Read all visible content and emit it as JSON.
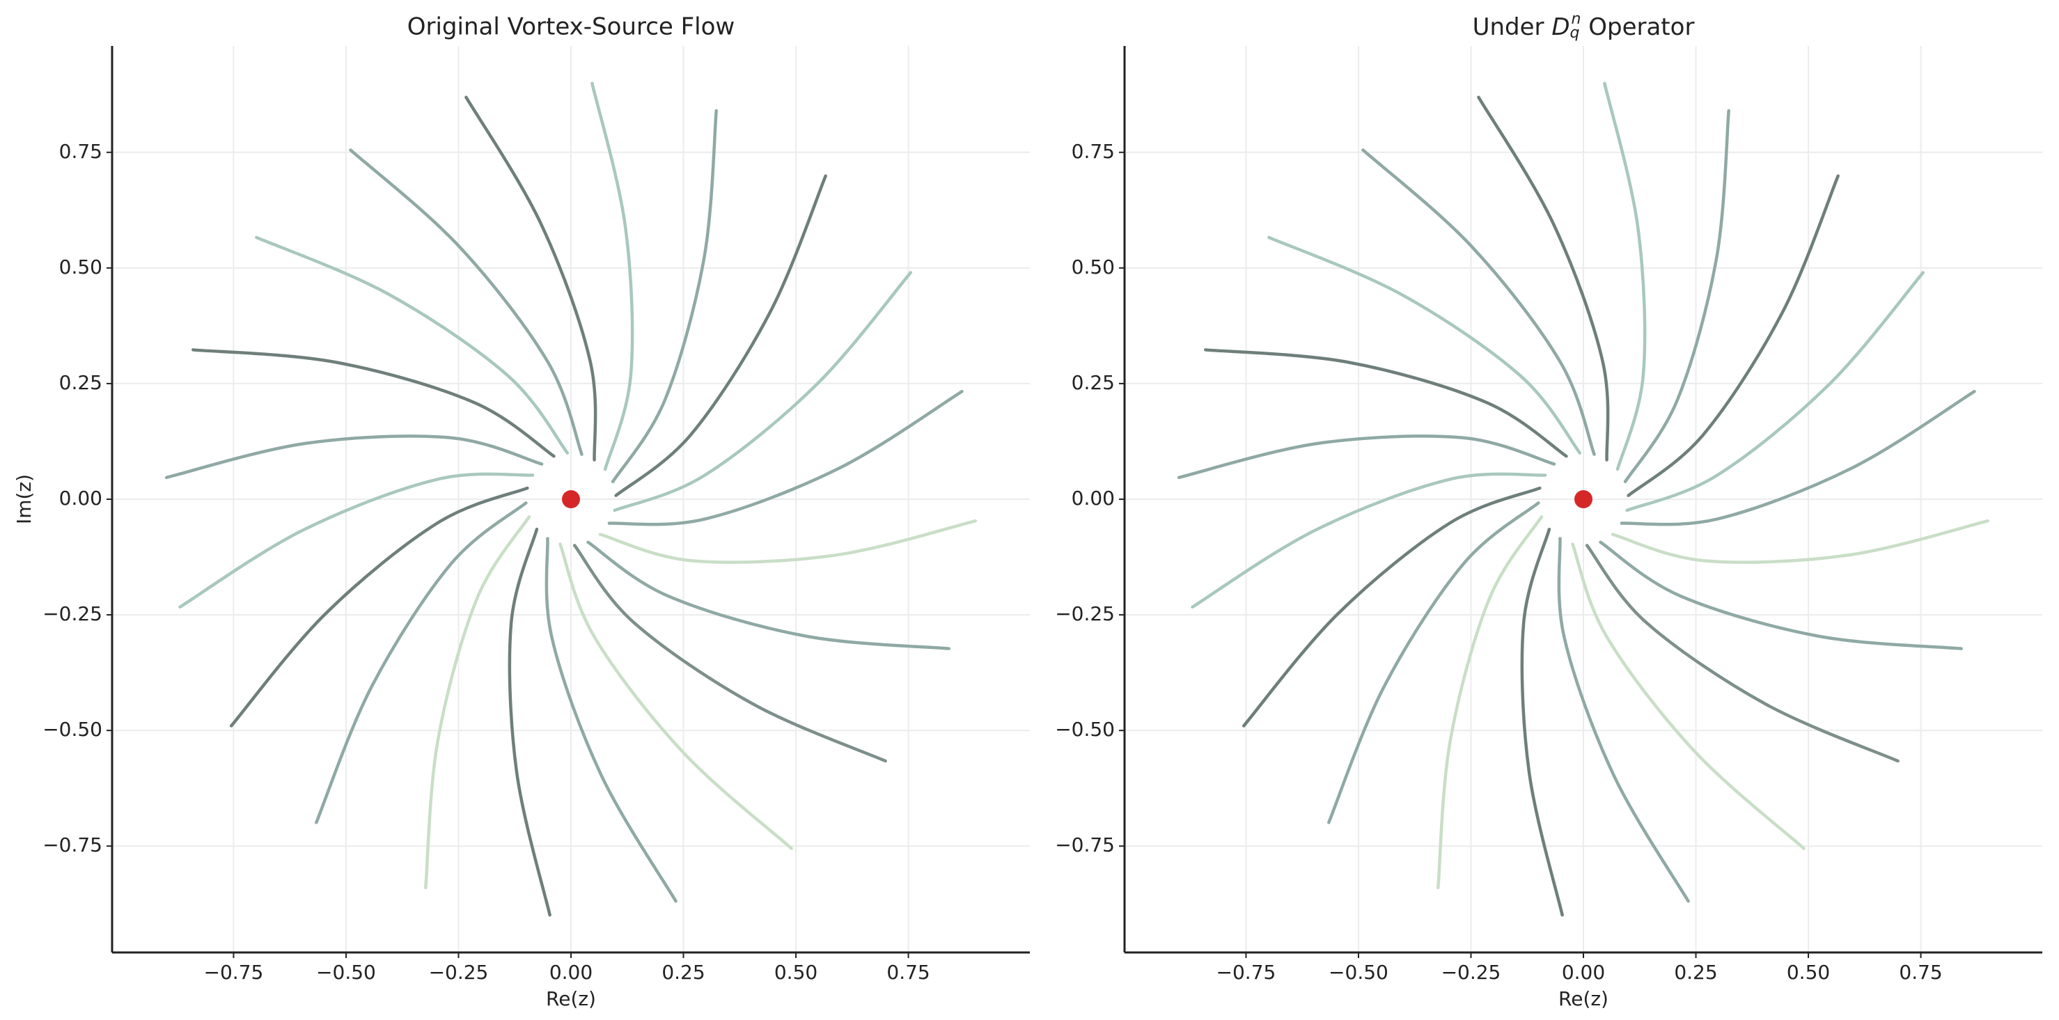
{
  "chart_data": [
    {
      "type": "line",
      "title": "Original Vortex-Source Flow",
      "xlabel": "Re(z)",
      "ylabel": "Im(z)",
      "xlim": [
        -1.02,
        1.02
      ],
      "ylim": [
        -0.98,
        0.98
      ],
      "xticks": [
        {
          "value": -0.75,
          "label": "−0.75"
        },
        {
          "value": -0.5,
          "label": "−0.50"
        },
        {
          "value": -0.25,
          "label": "−0.25"
        },
        {
          "value": 0,
          "label": "0.00"
        },
        {
          "value": 0.25,
          "label": "0.25"
        },
        {
          "value": 0.5,
          "label": "0.50"
        },
        {
          "value": 0.75,
          "label": "0.75"
        }
      ],
      "yticks": [
        {
          "value": -0.75,
          "label": "−0.75"
        },
        {
          "value": -0.5,
          "label": "−0.50"
        },
        {
          "value": -0.25,
          "label": "−0.25"
        },
        {
          "value": 0,
          "label": "0.00"
        },
        {
          "value": 0.25,
          "label": "0.25"
        },
        {
          "value": 0.5,
          "label": "0.50"
        },
        {
          "value": 0.75,
          "label": "0.75"
        }
      ],
      "grid": true,
      "series": [
        {
          "color": "#6e7f7b",
          "x": [
            0.052,
            0.043,
            -0.067,
            -0.233
          ],
          "y": [
            0.085,
            0.297,
            0.596,
            0.869
          ]
        },
        {
          "color": "#a8c8bc",
          "x": [
            0.076,
            0.133,
            0.121,
            0.047
          ],
          "y": [
            0.065,
            0.269,
            0.588,
            0.899
          ]
        },
        {
          "color": "#8fa9a4",
          "x": [
            0.093,
            0.209,
            0.296,
            0.323
          ],
          "y": [
            0.038,
            0.215,
            0.522,
            0.84
          ]
        },
        {
          "color": "#6e7f7b",
          "x": [
            0.1,
            0.266,
            0.443,
            0.566
          ],
          "y": [
            0.008,
            0.139,
            0.405,
            0.699
          ]
        },
        {
          "color": "#a8c8bc",
          "x": [
            0.097,
            0.296,
            0.546,
            0.755
          ],
          "y": [
            -0.024,
            0.051,
            0.248,
            0.49
          ]
        },
        {
          "color": "#8fa9a4",
          "x": [
            0.085,
            0.297,
            0.596,
            0.869
          ],
          "y": [
            -0.052,
            -0.043,
            0.067,
            0.233
          ]
        },
        {
          "color": "#c9dec6",
          "x": [
            0.065,
            0.269,
            0.588,
            0.899
          ],
          "y": [
            -0.076,
            -0.133,
            -0.121,
            -0.047
          ]
        },
        {
          "color": "#8fa9a4",
          "x": [
            0.038,
            0.215,
            0.522,
            0.84
          ],
          "y": [
            -0.093,
            -0.209,
            -0.296,
            -0.323
          ]
        },
        {
          "color": "#7d8f8b",
          "x": [
            0.008,
            0.139,
            0.405,
            0.699
          ],
          "y": [
            -0.1,
            -0.266,
            -0.443,
            -0.566
          ]
        },
        {
          "color": "#c9dec6",
          "x": [
            -0.024,
            0.051,
            0.248,
            0.49
          ],
          "y": [
            -0.097,
            -0.296,
            -0.546,
            -0.755
          ]
        },
        {
          "color": "#8fa9a4",
          "x": [
            -0.052,
            -0.043,
            0.067,
            0.233
          ],
          "y": [
            -0.085,
            -0.297,
            -0.596,
            -0.869
          ]
        },
        {
          "color": "#6e7f7b",
          "x": [
            -0.076,
            -0.133,
            -0.121,
            -0.047
          ],
          "y": [
            -0.065,
            -0.269,
            -0.588,
            -0.899
          ]
        },
        {
          "color": "#c9dec6",
          "x": [
            -0.093,
            -0.209,
            -0.296,
            -0.323
          ],
          "y": [
            -0.038,
            -0.215,
            -0.522,
            -0.84
          ]
        },
        {
          "color": "#8fa9a4",
          "x": [
            -0.1,
            -0.266,
            -0.443,
            -0.566
          ],
          "y": [
            -0.008,
            -0.139,
            -0.405,
            -0.699
          ]
        },
        {
          "color": "#6e7f7b",
          "x": [
            -0.097,
            -0.296,
            -0.546,
            -0.755
          ],
          "y": [
            0.024,
            -0.051,
            -0.248,
            -0.49
          ]
        },
        {
          "color": "#a8c8bc",
          "x": [
            -0.085,
            -0.297,
            -0.596,
            -0.869
          ],
          "y": [
            0.052,
            0.043,
            -0.067,
            -0.233
          ]
        },
        {
          "color": "#8fa9a4",
          "x": [
            -0.065,
            -0.269,
            -0.588,
            -0.899
          ],
          "y": [
            0.076,
            0.133,
            0.121,
            0.047
          ]
        },
        {
          "color": "#6e7f7b",
          "x": [
            -0.038,
            -0.215,
            -0.522,
            -0.84
          ],
          "y": [
            0.093,
            0.209,
            0.296,
            0.323
          ]
        },
        {
          "color": "#a8c8bc",
          "x": [
            -0.008,
            -0.139,
            -0.405,
            -0.699
          ],
          "y": [
            0.1,
            0.266,
            0.443,
            0.566
          ]
        },
        {
          "color": "#8fa9a4",
          "x": [
            0.024,
            -0.051,
            -0.248,
            -0.49
          ],
          "y": [
            0.097,
            0.296,
            0.546,
            0.755
          ]
        }
      ],
      "marker": {
        "x": 0,
        "y": 0,
        "color": "#d62728"
      }
    },
    {
      "type": "line",
      "title_parts": [
        {
          "text": "Under "
        },
        {
          "text": "D",
          "style": "italic"
        },
        {
          "text": "q",
          "style": "sub"
        },
        {
          "text": "n",
          "style": "sup"
        },
        {
          "text": " Operator"
        }
      ],
      "xlabel": "Re(z)",
      "xlim": [
        -1.02,
        1.02
      ],
      "ylim": [
        -0.98,
        0.98
      ],
      "xticks": [
        {
          "value": -0.75,
          "label": "−0.75"
        },
        {
          "value": -0.5,
          "label": "−0.50"
        },
        {
          "value": -0.25,
          "label": "−0.25"
        },
        {
          "value": 0,
          "label": "0.00"
        },
        {
          "value": 0.25,
          "label": "0.25"
        },
        {
          "value": 0.5,
          "label": "0.50"
        },
        {
          "value": 0.75,
          "label": "0.75"
        }
      ],
      "yticks": [
        {
          "value": -0.75,
          "label": "−0.75"
        },
        {
          "value": -0.5,
          "label": "−0.50"
        },
        {
          "value": -0.25,
          "label": "−0.25"
        },
        {
          "value": 0,
          "label": "0.00"
        },
        {
          "value": 0.25,
          "label": "0.25"
        },
        {
          "value": 0.5,
          "label": "0.50"
        },
        {
          "value": 0.75,
          "label": "0.75"
        }
      ],
      "grid": true,
      "series": [
        {
          "color": "#6e7f7b",
          "x": [
            0.052,
            0.043,
            -0.067,
            -0.233
          ],
          "y": [
            0.085,
            0.297,
            0.596,
            0.869
          ]
        },
        {
          "color": "#a8c8bc",
          "x": [
            0.076,
            0.133,
            0.121,
            0.047
          ],
          "y": [
            0.065,
            0.269,
            0.588,
            0.899
          ]
        },
        {
          "color": "#8fa9a4",
          "x": [
            0.093,
            0.209,
            0.296,
            0.323
          ],
          "y": [
            0.038,
            0.215,
            0.522,
            0.84
          ]
        },
        {
          "color": "#6e7f7b",
          "x": [
            0.1,
            0.266,
            0.443,
            0.566
          ],
          "y": [
            0.008,
            0.139,
            0.405,
            0.699
          ]
        },
        {
          "color": "#a8c8bc",
          "x": [
            0.097,
            0.296,
            0.546,
            0.755
          ],
          "y": [
            -0.024,
            0.051,
            0.248,
            0.49
          ]
        },
        {
          "color": "#8fa9a4",
          "x": [
            0.085,
            0.297,
            0.596,
            0.869
          ],
          "y": [
            -0.052,
            -0.043,
            0.067,
            0.233
          ]
        },
        {
          "color": "#c9dec6",
          "x": [
            0.065,
            0.269,
            0.588,
            0.899
          ],
          "y": [
            -0.076,
            -0.133,
            -0.121,
            -0.047
          ]
        },
        {
          "color": "#8fa9a4",
          "x": [
            0.038,
            0.215,
            0.522,
            0.84
          ],
          "y": [
            -0.093,
            -0.209,
            -0.296,
            -0.323
          ]
        },
        {
          "color": "#7d8f8b",
          "x": [
            0.008,
            0.139,
            0.405,
            0.699
          ],
          "y": [
            -0.1,
            -0.266,
            -0.443,
            -0.566
          ]
        },
        {
          "color": "#c9dec6",
          "x": [
            -0.024,
            0.051,
            0.248,
            0.49
          ],
          "y": [
            -0.097,
            -0.296,
            -0.546,
            -0.755
          ]
        },
        {
          "color": "#8fa9a4",
          "x": [
            -0.052,
            -0.043,
            0.067,
            0.233
          ],
          "y": [
            -0.085,
            -0.297,
            -0.596,
            -0.869
          ]
        },
        {
          "color": "#6e7f7b",
          "x": [
            -0.076,
            -0.133,
            -0.121,
            -0.047
          ],
          "y": [
            -0.065,
            -0.269,
            -0.588,
            -0.899
          ]
        },
        {
          "color": "#c9dec6",
          "x": [
            -0.093,
            -0.209,
            -0.296,
            -0.323
          ],
          "y": [
            -0.038,
            -0.215,
            -0.522,
            -0.84
          ]
        },
        {
          "color": "#8fa9a4",
          "x": [
            -0.1,
            -0.266,
            -0.443,
            -0.566
          ],
          "y": [
            -0.008,
            -0.139,
            -0.405,
            -0.699
          ]
        },
        {
          "color": "#6e7f7b",
          "x": [
            -0.097,
            -0.296,
            -0.546,
            -0.755
          ],
          "y": [
            0.024,
            -0.051,
            -0.248,
            -0.49
          ]
        },
        {
          "color": "#a8c8bc",
          "x": [
            -0.085,
            -0.297,
            -0.596,
            -0.869
          ],
          "y": [
            0.052,
            0.043,
            -0.067,
            -0.233
          ]
        },
        {
          "color": "#8fa9a4",
          "x": [
            -0.065,
            -0.269,
            -0.588,
            -0.899
          ],
          "y": [
            0.076,
            0.133,
            0.121,
            0.047
          ]
        },
        {
          "color": "#6e7f7b",
          "x": [
            -0.038,
            -0.215,
            -0.522,
            -0.84
          ],
          "y": [
            0.093,
            0.209,
            0.296,
            0.323
          ]
        },
        {
          "color": "#a8c8bc",
          "x": [
            -0.008,
            -0.139,
            -0.405,
            -0.699
          ],
          "y": [
            0.1,
            0.266,
            0.443,
            0.566
          ]
        },
        {
          "color": "#8fa9a4",
          "x": [
            0.024,
            -0.051,
            -0.248,
            -0.49
          ],
          "y": [
            0.097,
            0.296,
            0.546,
            0.755
          ]
        }
      ],
      "marker": {
        "x": 0,
        "y": 0,
        "color": "#d62728"
      }
    }
  ]
}
